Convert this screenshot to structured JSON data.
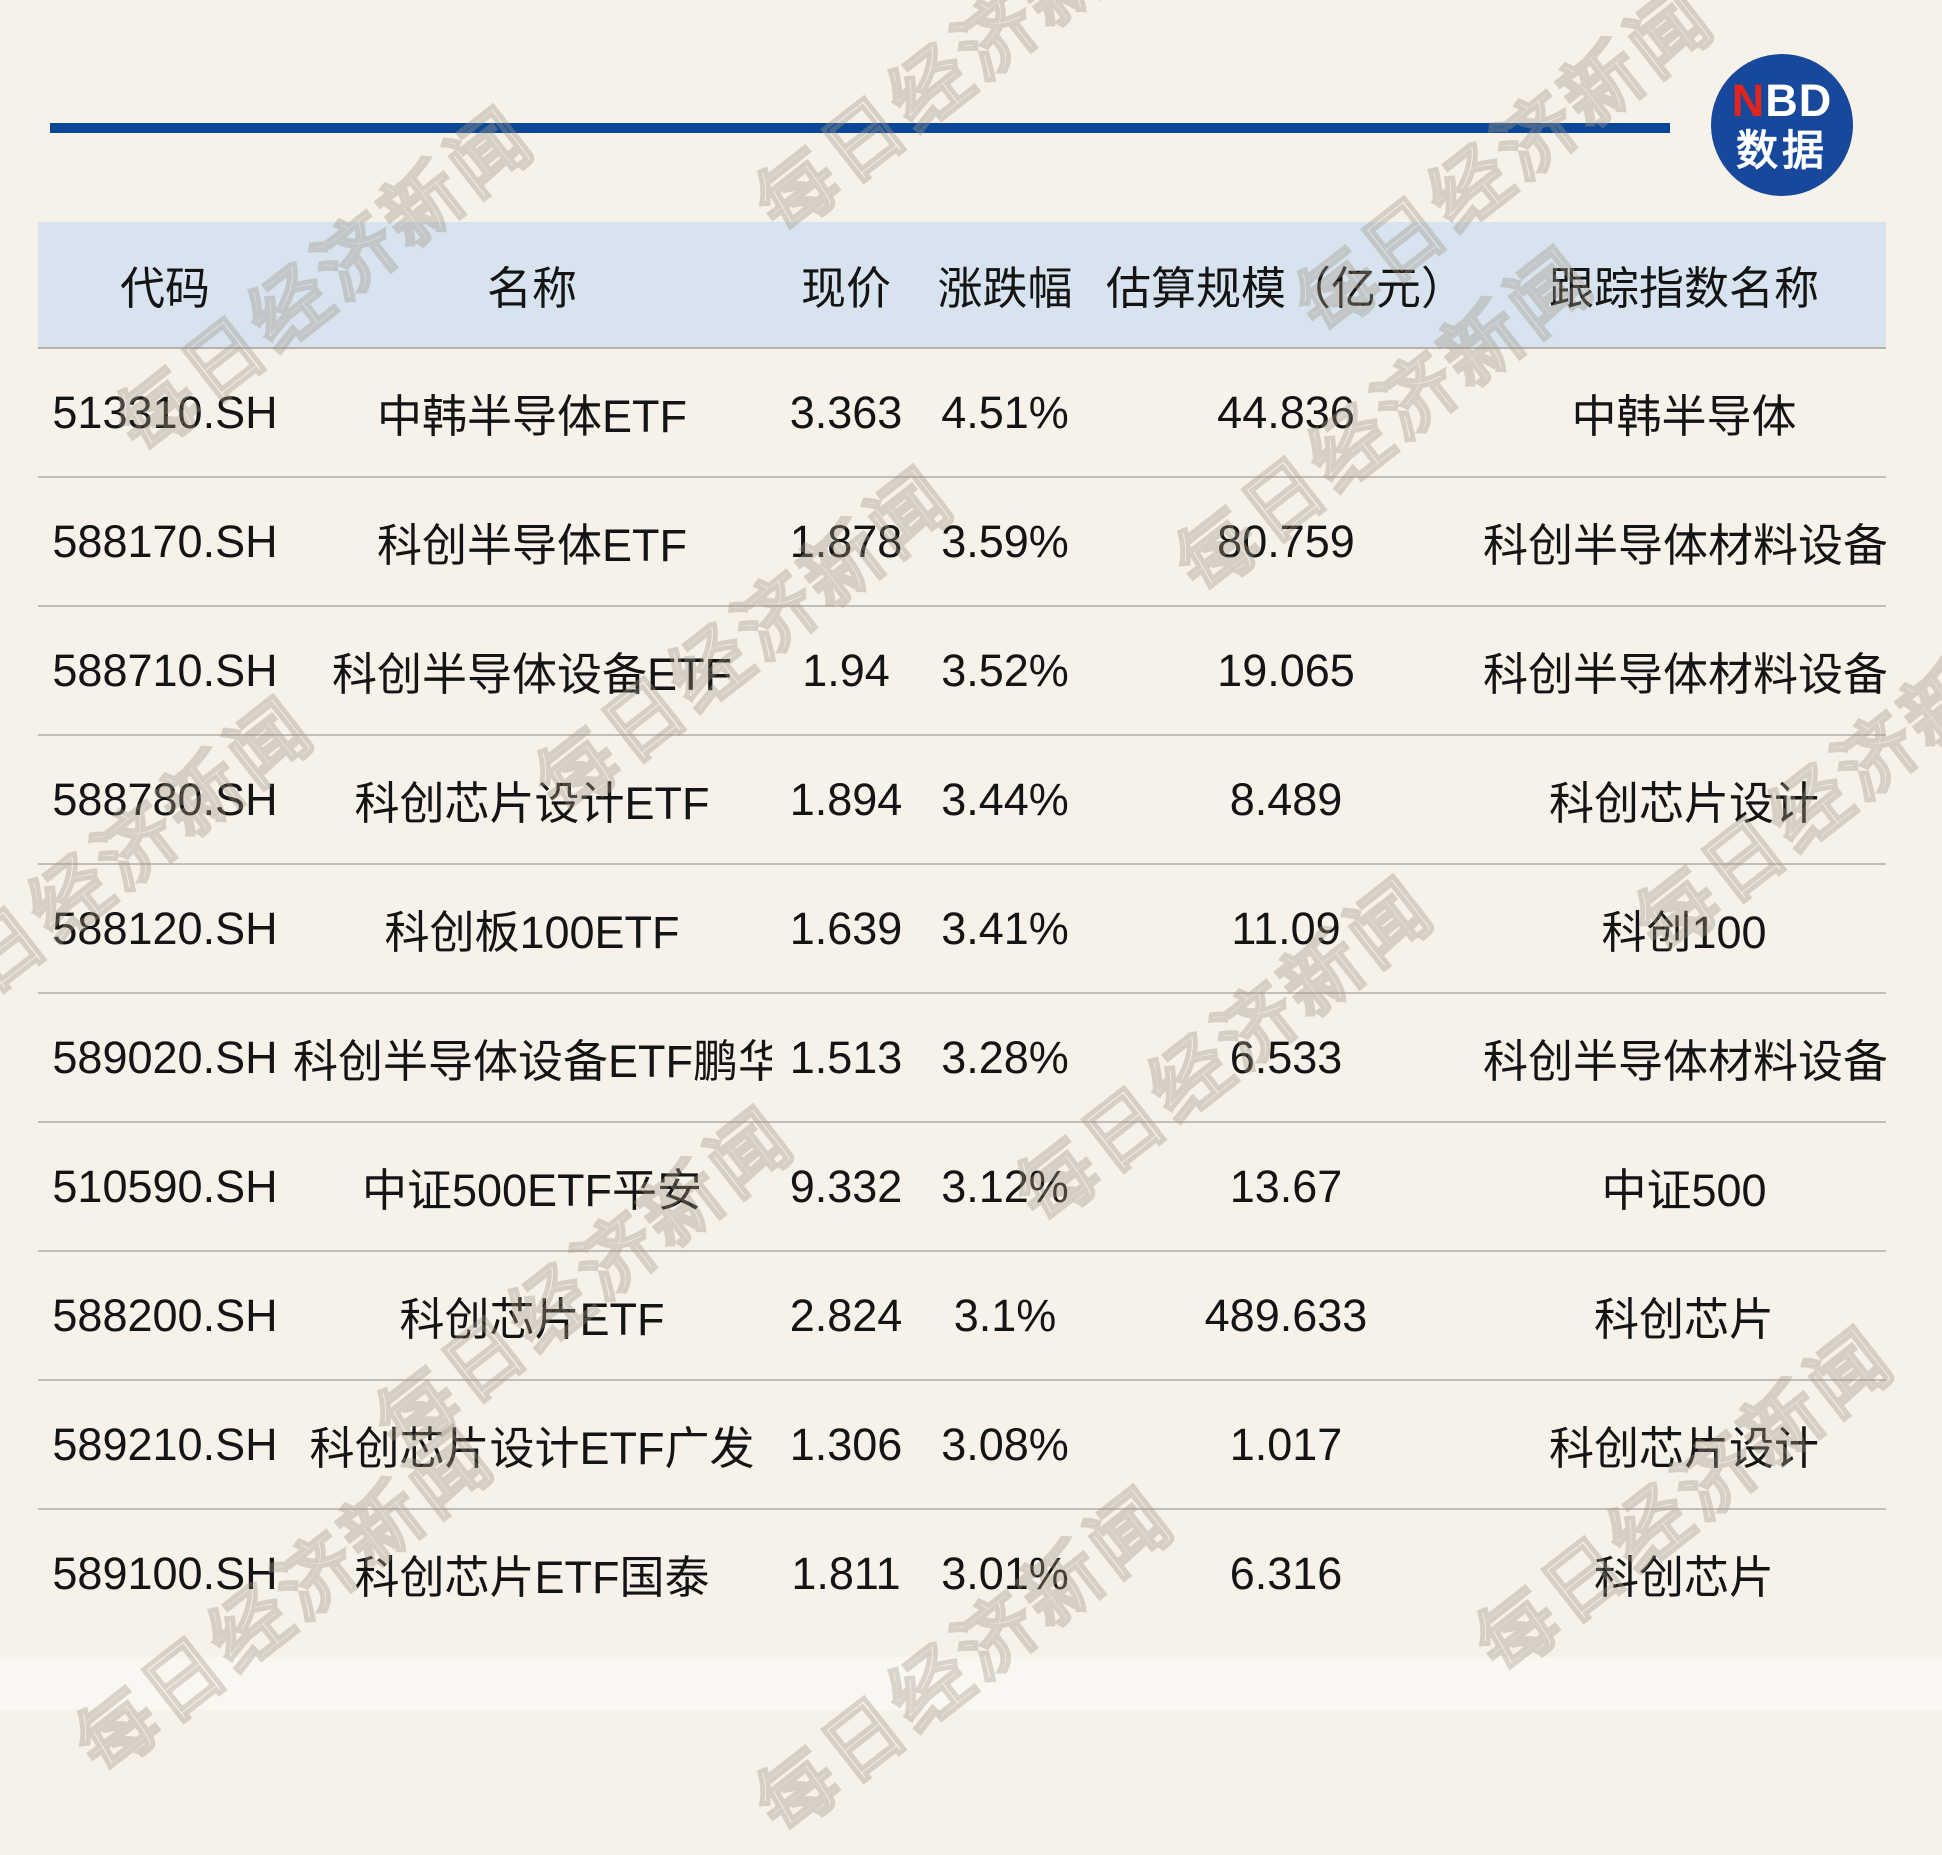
{
  "colors": {
    "background": "#f6f2ea",
    "header_background": "#d7e3ee",
    "accent_line": "#0a4795",
    "logo_circle": "#17489c",
    "logo_red": "#e0251f",
    "text": "#141414",
    "row_separator": "#c2beb7"
  },
  "logo": {
    "n": "N",
    "bd": "BD",
    "subtitle": "数据"
  },
  "watermark": {
    "text": "每日经济新闻"
  },
  "chart_data": {
    "type": "table",
    "columns": [
      "代码",
      "名称",
      "现价",
      "涨跌幅",
      "估算规模（亿元）",
      "跟踪指数名称"
    ],
    "column_keys": [
      "code",
      "name",
      "price",
      "change",
      "scale",
      "index"
    ],
    "rows": [
      [
        "513310.SH",
        "中韩半导体ETF",
        "3.363",
        "4.51%",
        "44.836",
        "中韩半导体"
      ],
      [
        "588170.SH",
        "科创半导体ETF",
        "1.878",
        "3.59%",
        "80.759",
        "科创半导体材料设备"
      ],
      [
        "588710.SH",
        "科创半导体设备ETF",
        "1.94",
        "3.52%",
        "19.065",
        "科创半导体材料设备"
      ],
      [
        "588780.SH",
        "科创芯片设计ETF",
        "1.894",
        "3.44%",
        "8.489",
        "科创芯片设计"
      ],
      [
        "588120.SH",
        "科创板100ETF",
        "1.639",
        "3.41%",
        "11.09",
        "科创100"
      ],
      [
        "589020.SH",
        "科创半导体设备ETF鹏华",
        "1.513",
        "3.28%",
        "6.533",
        "科创半导体材料设备"
      ],
      [
        "510590.SH",
        "中证500ETF平安",
        "9.332",
        "3.12%",
        "13.67",
        "中证500"
      ],
      [
        "588200.SH",
        "科创芯片ETF",
        "2.824",
        "3.1%",
        "489.633",
        "科创芯片"
      ],
      [
        "589210.SH",
        "科创芯片设计ETF广发",
        "1.306",
        "3.08%",
        "1.017",
        "科创芯片设计"
      ],
      [
        "589100.SH",
        "科创芯片ETF国泰",
        "1.811",
        "3.01%",
        "6.316",
        "科创芯片"
      ]
    ]
  }
}
